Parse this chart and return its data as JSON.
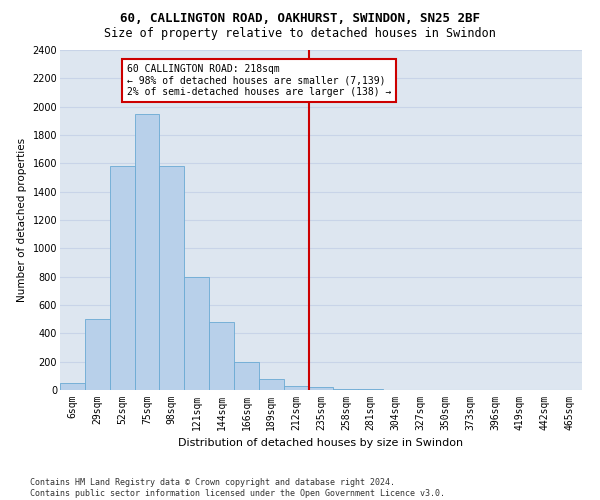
{
  "title": "60, CALLINGTON ROAD, OAKHURST, SWINDON, SN25 2BF",
  "subtitle": "Size of property relative to detached houses in Swindon",
  "xlabel": "Distribution of detached houses by size in Swindon",
  "ylabel": "Number of detached properties",
  "footer_line1": "Contains HM Land Registry data © Crown copyright and database right 2024.",
  "footer_line2": "Contains public sector information licensed under the Open Government Licence v3.0.",
  "bin_labels": [
    "6sqm",
    "29sqm",
    "52sqm",
    "75sqm",
    "98sqm",
    "121sqm",
    "144sqm",
    "166sqm",
    "189sqm",
    "212sqm",
    "235sqm",
    "258sqm",
    "281sqm",
    "304sqm",
    "327sqm",
    "350sqm",
    "373sqm",
    "396sqm",
    "419sqm",
    "442sqm",
    "465sqm"
  ],
  "bar_values": [
    50,
    500,
    1580,
    1950,
    1580,
    800,
    480,
    200,
    80,
    30,
    20,
    5,
    5,
    3,
    3,
    3,
    3,
    3,
    3,
    3,
    0
  ],
  "bar_color": "#b8d0ea",
  "bar_edge_color": "#6aaad4",
  "grid_color": "#c8d4e8",
  "background_color": "#dde6f0",
  "vline_x_index": 9.5,
  "vline_color": "#cc0000",
  "annotation_text": "60 CALLINGTON ROAD: 218sqm\n← 98% of detached houses are smaller (7,139)\n2% of semi-detached houses are larger (138) →",
  "annotation_box_color": "#ffffff",
  "annotation_box_edge": "#cc0000",
  "ylim": [
    0,
    2400
  ],
  "yticks": [
    0,
    200,
    400,
    600,
    800,
    1000,
    1200,
    1400,
    1600,
    1800,
    2000,
    2200,
    2400
  ],
  "title_fontsize": 9,
  "subtitle_fontsize": 8.5,
  "xlabel_fontsize": 8,
  "ylabel_fontsize": 7.5,
  "tick_fontsize": 7,
  "annot_fontsize": 7,
  "footer_fontsize": 6
}
